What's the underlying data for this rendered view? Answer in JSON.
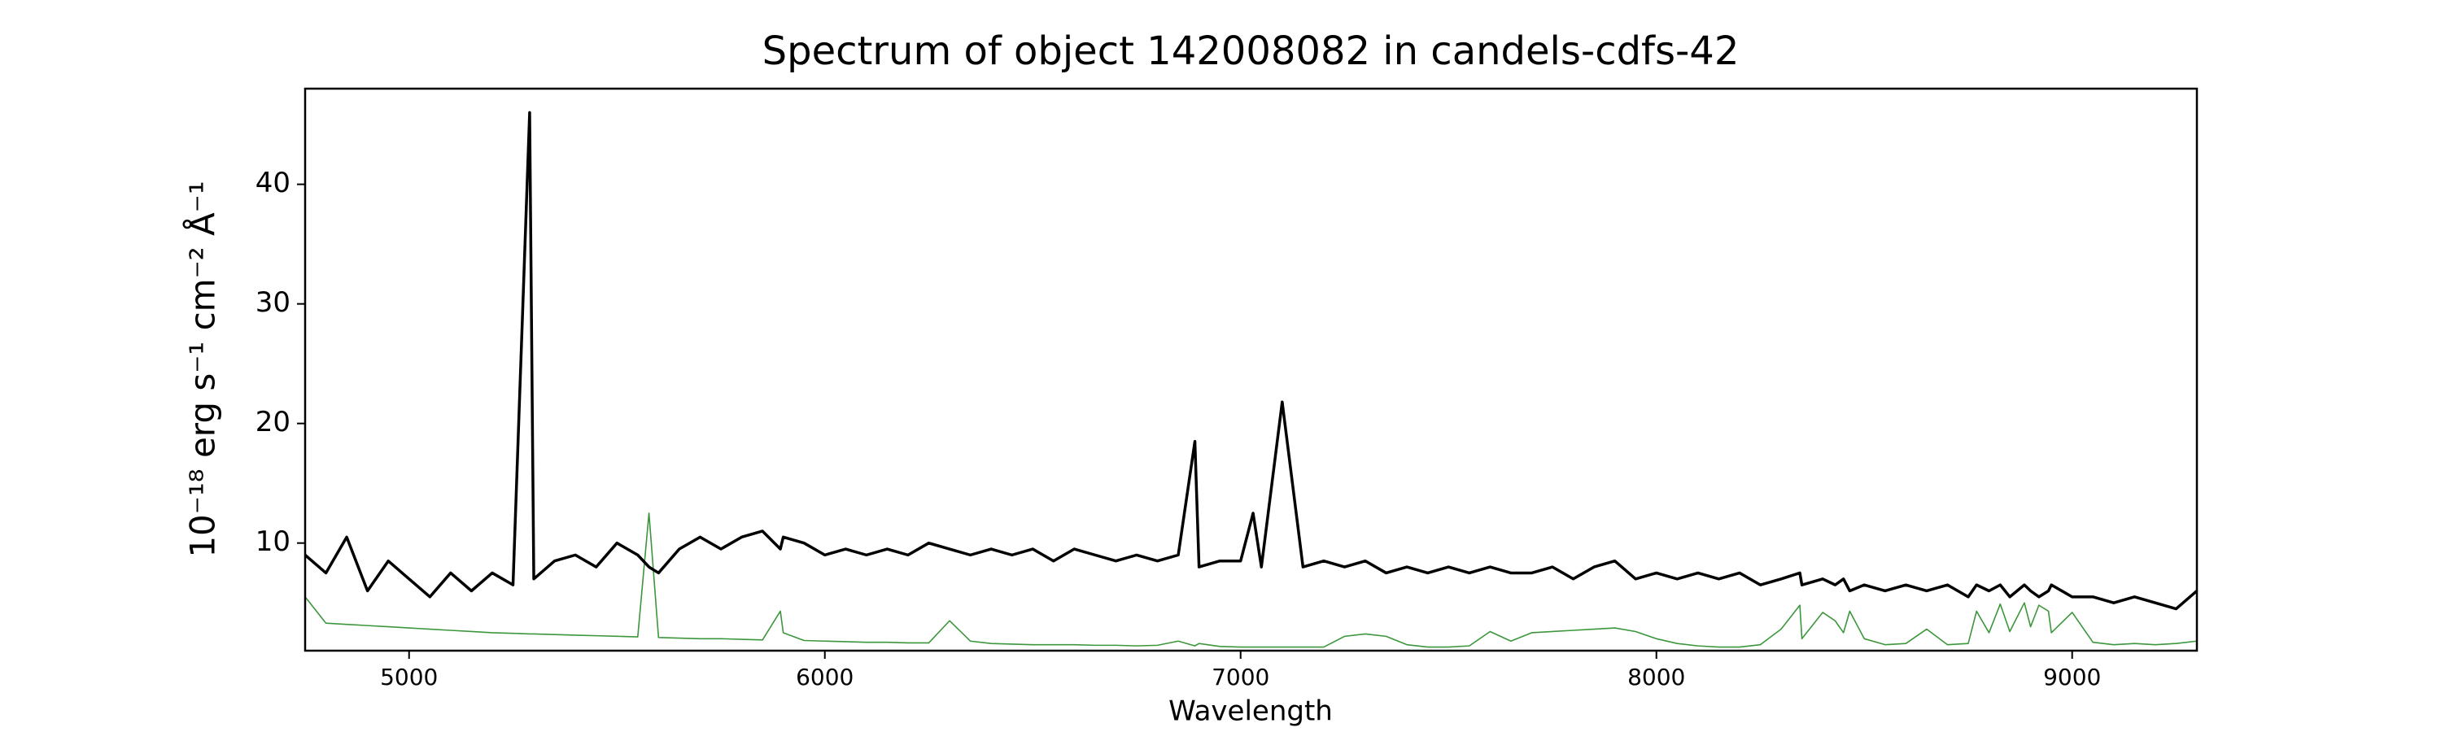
{
  "chart_data": {
    "type": "line",
    "title": "Spectrum of object 142008082 in candels-cdfs-42",
    "xlabel": "Wavelength",
    "ylabel": "10⁻¹⁸ erg s⁻¹ cm⁻² Å⁻¹",
    "x": [
      4750,
      4800,
      4850,
      4900,
      4950,
      5000,
      5050,
      5100,
      5150,
      5200,
      5250,
      5290,
      5300,
      5350,
      5400,
      5450,
      5500,
      5550,
      5577,
      5600,
      5650,
      5700,
      5750,
      5800,
      5850,
      5893,
      5900,
      5950,
      6000,
      6050,
      6100,
      6150,
      6200,
      6250,
      6300,
      6350,
      6400,
      6450,
      6500,
      6550,
      6600,
      6650,
      6700,
      6750,
      6800,
      6850,
      6890,
      6900,
      6950,
      7000,
      7030,
      7050,
      7100,
      7150,
      7200,
      7250,
      7300,
      7350,
      7400,
      7450,
      7500,
      7550,
      7600,
      7650,
      7700,
      7750,
      7800,
      7850,
      7900,
      7950,
      8000,
      8050,
      8100,
      8150,
      8200,
      8250,
      8300,
      8345,
      8350,
      8400,
      8430,
      8450,
      8465,
      8500,
      8550,
      8600,
      8650,
      8700,
      8750,
      8770,
      8800,
      8827,
      8850,
      8885,
      8900,
      8920,
      8943,
      8950,
      9000,
      9050,
      9100,
      9150,
      9200,
      9250,
      9300
    ],
    "series": [
      {
        "color": "#000000",
        "width": 3.5,
        "values": [
          9,
          7.5,
          10.5,
          6,
          8.5,
          7,
          5.5,
          7.5,
          6,
          7.5,
          6.5,
          46,
          7,
          8.5,
          9,
          8,
          10,
          9,
          8,
          7.5,
          9.5,
          10.5,
          9.5,
          10.5,
          11,
          9.5,
          10.5,
          10,
          9,
          9.5,
          9,
          9.5,
          9,
          10,
          9.5,
          9,
          9.5,
          9,
          9.5,
          8.5,
          9.5,
          9,
          8.5,
          9,
          8.5,
          9,
          18.5,
          8,
          8.5,
          8.5,
          12.5,
          8,
          21.8,
          8,
          8.5,
          8,
          8.5,
          7.5,
          8,
          7.5,
          8,
          7.5,
          8,
          7.5,
          7.5,
          8,
          7,
          8,
          8.5,
          7,
          7.5,
          7,
          7.5,
          7,
          7.5,
          6.5,
          7,
          7.5,
          6.5,
          7,
          6.5,
          7,
          6,
          6.5,
          6,
          6.5,
          6,
          6.5,
          5.5,
          6.5,
          6,
          6.5,
          5.5,
          6.5,
          6,
          5.5,
          6,
          6.5,
          5.5,
          5.5,
          5,
          5.5,
          5,
          4.5,
          6
        ]
      },
      {
        "color": "#3c963c",
        "width": 1.6,
        "values": [
          5.5,
          3.3,
          3.2,
          3.1,
          3,
          2.9,
          2.8,
          2.7,
          2.6,
          2.5,
          2.45,
          2.4,
          2.4,
          2.35,
          2.3,
          2.25,
          2.2,
          2.15,
          12.5,
          2.1,
          2.05,
          2,
          2,
          1.95,
          1.9,
          4.3,
          2.5,
          1.85,
          1.8,
          1.75,
          1.7,
          1.7,
          1.65,
          1.65,
          3.5,
          1.8,
          1.6,
          1.55,
          1.5,
          1.5,
          1.5,
          1.45,
          1.45,
          1.4,
          1.45,
          1.8,
          1.4,
          1.6,
          1.35,
          1.3,
          1.3,
          1.3,
          1.3,
          1.3,
          1.3,
          2.2,
          2.4,
          2.2,
          1.5,
          1.3,
          1.3,
          1.4,
          2.6,
          1.8,
          2.5,
          2.6,
          2.7,
          2.8,
          2.9,
          2.6,
          2,
          1.6,
          1.4,
          1.3,
          1.3,
          1.5,
          2.8,
          4.8,
          2,
          4.2,
          3.5,
          2.5,
          4.3,
          2,
          1.5,
          1.6,
          2.8,
          1.5,
          1.6,
          4.3,
          2.5,
          4.9,
          2.6,
          5,
          3,
          4.8,
          4.3,
          2.5,
          4.2,
          1.7,
          1.5,
          1.6,
          1.5,
          1.6,
          1.8
        ]
      }
    ],
    "xlim": [
      4750,
      9300
    ],
    "ylim": [
      1,
      48
    ],
    "xticks": [
      5000,
      6000,
      7000,
      8000,
      9000
    ],
    "yticks": [
      10,
      20,
      30,
      40
    ],
    "grid": false
  }
}
